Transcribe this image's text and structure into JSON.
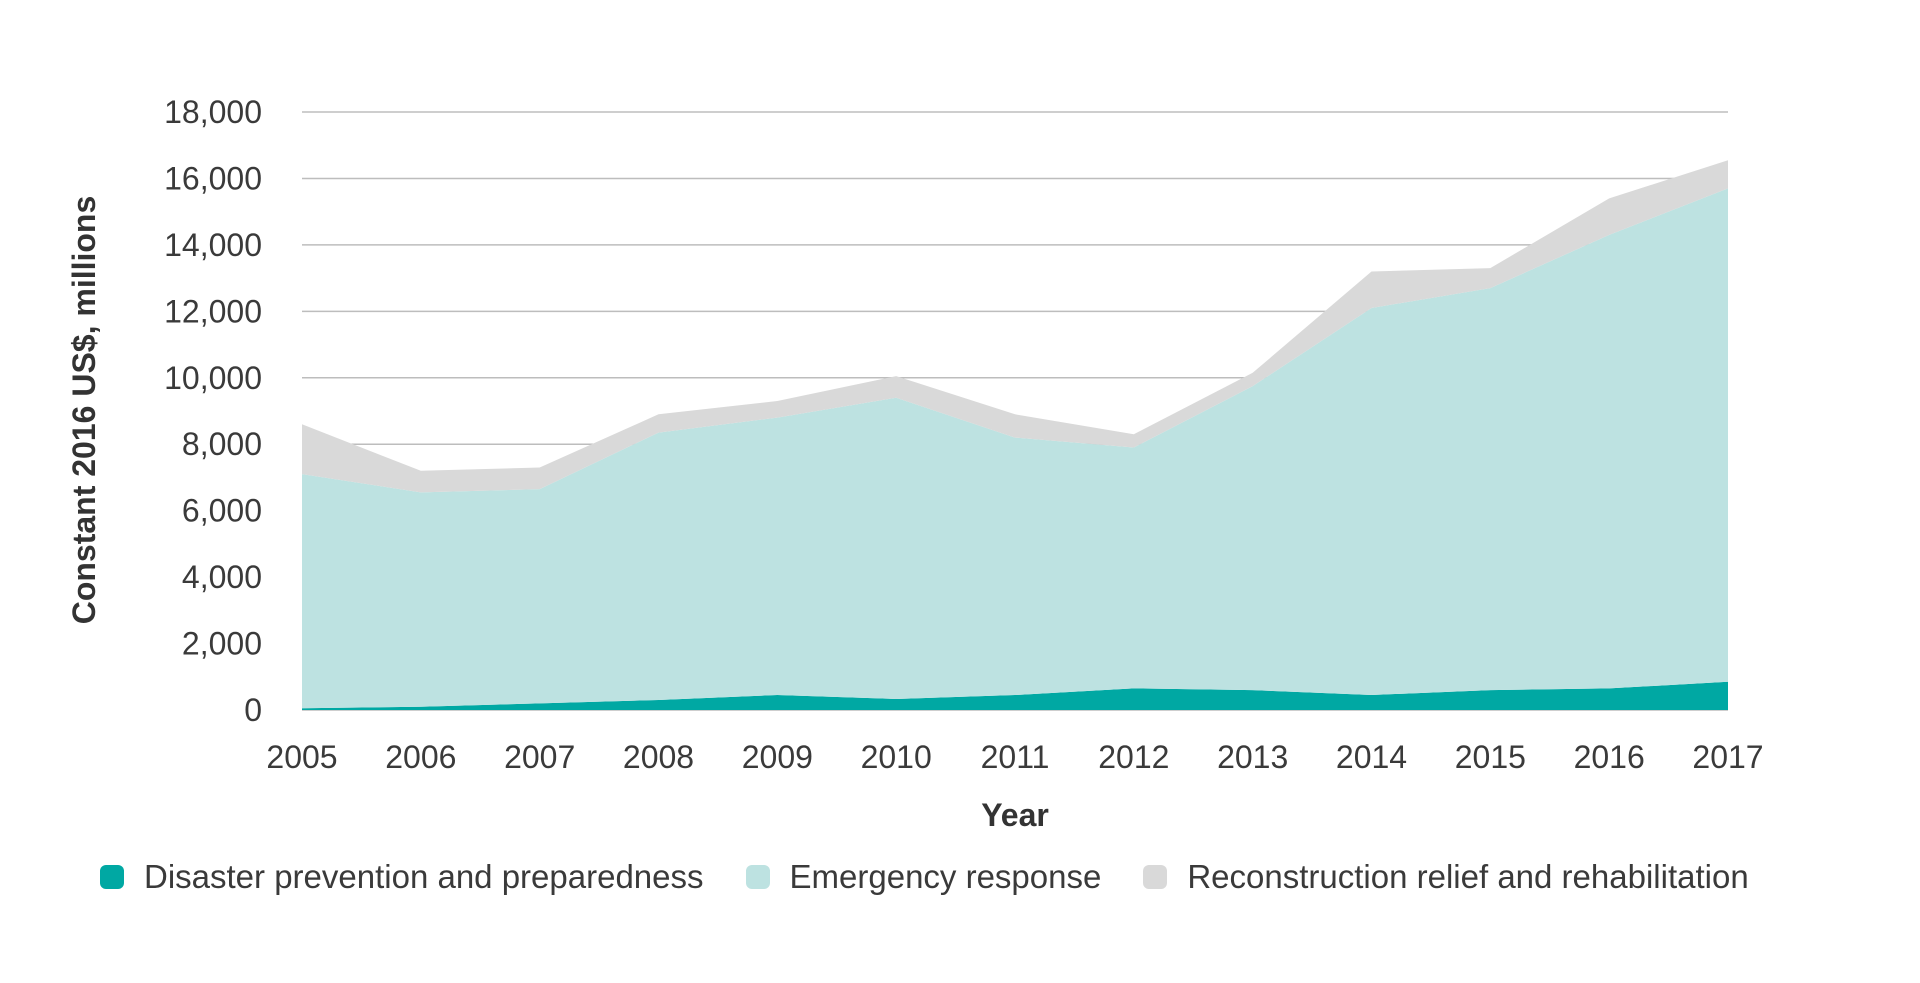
{
  "chart_data": {
    "type": "area",
    "stacked": true,
    "x": [
      2005,
      2006,
      2007,
      2008,
      2009,
      2010,
      2011,
      2012,
      2013,
      2014,
      2015,
      2016,
      2017
    ],
    "series": [
      {
        "name": "Disaster prevention and preparedness",
        "color": "#00a8a3",
        "values": [
          50,
          100,
          200,
          300,
          450,
          330,
          450,
          650,
          600,
          450,
          600,
          650,
          850
        ]
      },
      {
        "name": "Emergency response",
        "color": "#bde2e1",
        "values": [
          7050,
          6450,
          6450,
          8050,
          8350,
          9070,
          7750,
          7250,
          9150,
          11650,
          12100,
          13650,
          14850
        ]
      },
      {
        "name": "Reconstruction relief and rehabilitation",
        "color": "#d9d9d9",
        "values": [
          1500,
          650,
          650,
          550,
          500,
          650,
          700,
          400,
          400,
          1100,
          600,
          1100,
          850
        ]
      }
    ],
    "xlabel": "Year",
    "ylabel": "Constant 2016 US$, millions",
    "ylim": [
      0,
      18000
    ],
    "yticks": [
      0,
      2000,
      4000,
      6000,
      8000,
      10000,
      12000,
      14000,
      16000,
      18000
    ],
    "ytick_labels": [
      "0",
      "2,000",
      "4,000",
      "6,000",
      "8,000",
      "10,000",
      "12,000",
      "14,000",
      "16,000",
      "18,000"
    ],
    "xtick_labels": [
      "2005",
      "2006",
      "2007",
      "2008",
      "2009",
      "2010",
      "2011",
      "2012",
      "2013",
      "2014",
      "2015",
      "2016",
      "2017"
    ],
    "grid": true,
    "legend_position": "bottom"
  }
}
